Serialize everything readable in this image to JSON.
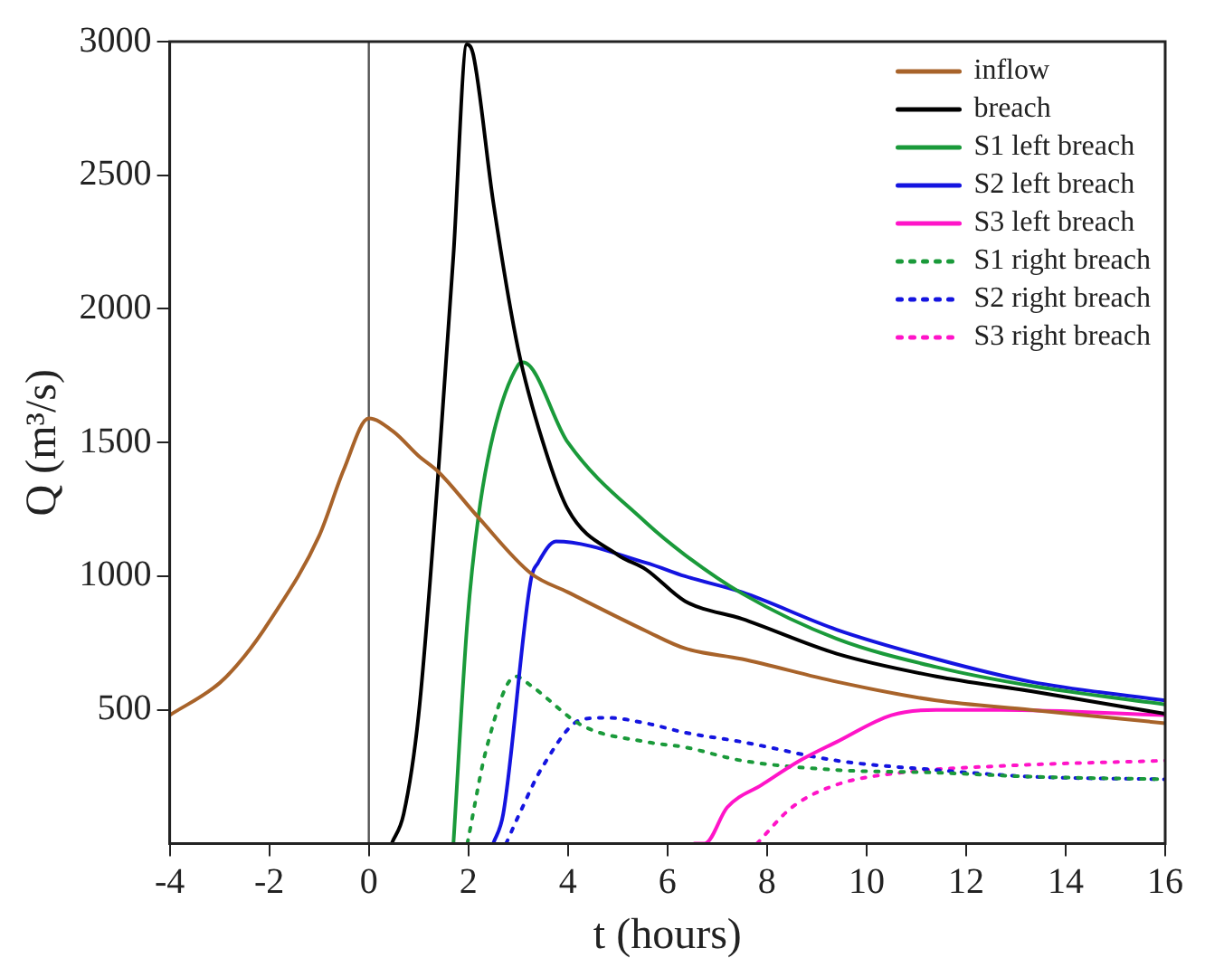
{
  "chart_data": {
    "type": "line",
    "xlabel": "t (hours)",
    "ylabel": "Q (m³/s)",
    "xlim": [
      -4,
      16
    ],
    "ylim": [
      0,
      3000
    ],
    "xticks": [
      -4,
      -2,
      0,
      2,
      4,
      6,
      8,
      10,
      12,
      14,
      16
    ],
    "yticks": [
      500,
      1000,
      1500,
      2000,
      2500,
      3000
    ],
    "grid": false,
    "legend": "top right",
    "marker": "none",
    "ref_lines": [
      {
        "axis": "x",
        "value": 0,
        "color": "#555555"
      }
    ],
    "series": [
      {
        "name": "inflow",
        "color": "#a8632a",
        "line_style": "solid",
        "x": [
          -4,
          -3,
          -2.5,
          -2,
          -1,
          -0.5,
          0,
          0.5,
          1,
          1.4,
          2.2,
          3.26,
          4,
          5.57,
          6.35,
          7.5,
          9.4,
          11.4,
          13.3,
          16
        ],
        "values": [
          480,
          600,
          700,
          830,
          1150,
          1400,
          1590,
          1540,
          1450,
          1390,
          1220,
          1010,
          940,
          795,
          730,
          690,
          605,
          535,
          500,
          450
        ]
      },
      {
        "name": "breach",
        "color": "#000000",
        "line_style": "solid",
        "x": [
          0.46,
          0.7,
          1.0,
          1.4,
          1.7,
          1.97,
          2.1,
          2.5,
          3.0,
          3.5,
          4,
          5,
          5.57,
          6.35,
          7.5,
          9.4,
          11.4,
          13.3,
          16
        ],
        "values": [
          0,
          110,
          480,
          1400,
          2200,
          2990,
          2950,
          2400,
          1850,
          1500,
          1250,
          1080,
          1025,
          907,
          840,
          710,
          625,
          570,
          485
        ]
      },
      {
        "name": "S1 left breach",
        "color": "#1a9a3a",
        "line_style": "solid",
        "x": [
          1.7,
          1.98,
          2.2,
          2.5,
          3.0,
          3.1,
          4,
          5.57,
          6.35,
          7.5,
          9.4,
          11.4,
          13.3,
          16
        ],
        "values": [
          0,
          830,
          1220,
          1530,
          1790,
          1800,
          1500,
          1200,
          1080,
          935,
          766,
          660,
          590,
          520
        ]
      },
      {
        "name": "S2 left breach",
        "color": "#1414e0",
        "line_style": "solid",
        "x": [
          2.5,
          2.7,
          3.26,
          3.4,
          3.76,
          5.57,
          6.35,
          7.5,
          9.4,
          11.4,
          13.3,
          16
        ],
        "values": [
          0,
          110,
          990,
          1050,
          1130,
          1050,
          1000,
          940,
          800,
          690,
          605,
          535
        ]
      },
      {
        "name": "S3 left breach",
        "color": "#ff14c8",
        "line_style": "solid",
        "x": [
          6.54,
          6.75,
          7.2,
          7.9,
          8.66,
          9.4,
          10.5,
          11.4,
          12.7,
          16
        ],
        "values": [
          0,
          0,
          135,
          220,
          310,
          380,
          480,
          500,
          500,
          480
        ]
      },
      {
        "name": "S1 right breach",
        "color": "#1a9a3a",
        "line_style": "dotted",
        "x": [
          1.98,
          2.37,
          2.95,
          3.26,
          4.3,
          5.57,
          6.35,
          7.5,
          9.4,
          11.4,
          13.3,
          16
        ],
        "values": [
          0,
          360,
          625,
          590,
          440,
          380,
          360,
          310,
          275,
          265,
          250,
          240
        ]
      },
      {
        "name": "S2 right breach",
        "color": "#1414e0",
        "line_style": "dotted",
        "x": [
          2.76,
          3.0,
          3.5,
          4.3,
          4.8,
          5.57,
          6.35,
          7.5,
          9.4,
          11.4,
          13.3,
          16
        ],
        "values": [
          0,
          100,
          290,
          465,
          470,
          450,
          415,
          380,
          310,
          275,
          250,
          240
        ]
      },
      {
        "name": "S3 right breach",
        "color": "#ff14c8",
        "line_style": "dotted",
        "x": [
          7.8,
          8.5,
          9.4,
          10.7,
          12.7,
          16
        ],
        "values": [
          0,
          135,
          220,
          265,
          290,
          310
        ]
      }
    ]
  }
}
